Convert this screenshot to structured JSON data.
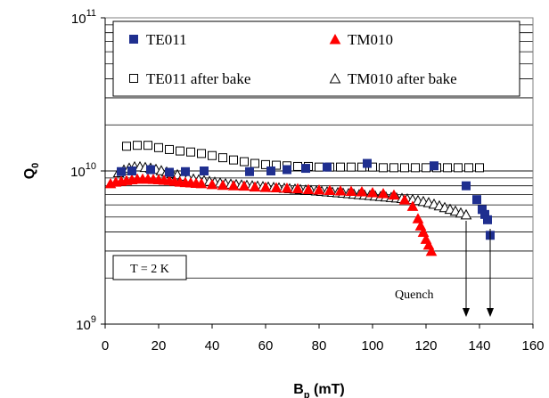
{
  "chart_data": {
    "type": "scatter",
    "title": "",
    "xlabel": "B",
    "xlabel_sub": "p",
    "xlabel_unit": " (mT)",
    "ylabel": "Q",
    "ylabel_sub": "0",
    "xlim": [
      0,
      160
    ],
    "ylim": [
      1000000000.0,
      100000000000.0
    ],
    "yscale": "log",
    "x_ticks": [
      0,
      20,
      40,
      60,
      80,
      100,
      120,
      140,
      160
    ],
    "y_ticks": [
      {
        "value": 1000000000.0,
        "base": "10",
        "exp": "9"
      },
      {
        "value": 10000000000.0,
        "base": "10",
        "exp": "10"
      },
      {
        "value": 100000000000.0,
        "base": "10",
        "exp": "11"
      }
    ],
    "grid": "horizontal",
    "legend_position": "top",
    "series": [
      {
        "name": "TE011",
        "marker": "filled-square",
        "color": "#1f2f8f",
        "points": [
          [
            6,
            9900000000.0
          ],
          [
            10,
            10000000000.0
          ],
          [
            17,
            10200000000.0
          ],
          [
            24,
            9800000000.0
          ],
          [
            30,
            9900000000.0
          ],
          [
            37,
            10000000000.0
          ],
          [
            54,
            9900000000.0
          ],
          [
            62,
            10000000000.0
          ],
          [
            68,
            10200000000.0
          ],
          [
            75,
            10400000000.0
          ],
          [
            83,
            10600000000.0
          ],
          [
            98,
            11200000000.0
          ],
          [
            123,
            10800000000.0
          ],
          [
            135,
            8000000000.0
          ],
          [
            139,
            6500000000.0
          ],
          [
            141,
            5600000000.0
          ],
          [
            142,
            5200000000.0
          ],
          [
            143,
            4800000000.0
          ],
          [
            144,
            3800000000.0
          ]
        ]
      },
      {
        "name": "TM010",
        "marker": "filled-triangle",
        "color": "#ff0000",
        "points": [
          [
            2,
            8300000000.0
          ],
          [
            4,
            8500000000.0
          ],
          [
            6,
            8600000000.0
          ],
          [
            8,
            8700000000.0
          ],
          [
            10,
            8800000000.0
          ],
          [
            12,
            8900000000.0
          ],
          [
            14,
            8900000000.0
          ],
          [
            16,
            8900000000.0
          ],
          [
            18,
            8850000000.0
          ],
          [
            20,
            8800000000.0
          ],
          [
            22,
            8750000000.0
          ],
          [
            24,
            8700000000.0
          ],
          [
            26,
            8600000000.0
          ],
          [
            28,
            8500000000.0
          ],
          [
            30,
            8450000000.0
          ],
          [
            32,
            8400000000.0
          ],
          [
            34,
            8350000000.0
          ],
          [
            36,
            8300000000.0
          ],
          [
            40,
            8200000000.0
          ],
          [
            44,
            8100000000.0
          ],
          [
            48,
            8050000000.0
          ],
          [
            52,
            8000000000.0
          ],
          [
            56,
            7900000000.0
          ],
          [
            60,
            7850000000.0
          ],
          [
            64,
            7800000000.0
          ],
          [
            68,
            7750000000.0
          ],
          [
            72,
            7700000000.0
          ],
          [
            76,
            7600000000.0
          ],
          [
            80,
            7550000000.0
          ],
          [
            84,
            7500000000.0
          ],
          [
            88,
            7450000000.0
          ],
          [
            92,
            7400000000.0
          ],
          [
            96,
            7350000000.0
          ],
          [
            100,
            7250000000.0
          ],
          [
            104,
            7150000000.0
          ],
          [
            108,
            7000000000.0
          ],
          [
            112,
            6500000000.0
          ],
          [
            115,
            5900000000.0
          ],
          [
            117,
            4900000000.0
          ],
          [
            118,
            4400000000.0
          ],
          [
            119,
            4000000000.0
          ],
          [
            120,
            3600000000.0
          ],
          [
            121,
            3300000000.0
          ],
          [
            122,
            3000000000.0
          ]
        ]
      },
      {
        "name": "TE011 after bake",
        "marker": "open-square",
        "color": "#000000",
        "points": [
          [
            8,
            14500000000.0
          ],
          [
            12,
            14700000000.0
          ],
          [
            16,
            14700000000.0
          ],
          [
            20,
            14200000000.0
          ],
          [
            24,
            13800000000.0
          ],
          [
            28,
            13500000000.0
          ],
          [
            32,
            13300000000.0
          ],
          [
            36,
            13000000000.0
          ],
          [
            40,
            12600000000.0
          ],
          [
            44,
            12200000000.0
          ],
          [
            48,
            11800000000.0
          ],
          [
            52,
            11500000000.0
          ],
          [
            56,
            11200000000.0
          ],
          [
            60,
            11000000000.0
          ],
          [
            64,
            10900000000.0
          ],
          [
            68,
            10800000000.0
          ],
          [
            72,
            10700000000.0
          ],
          [
            76,
            10700000000.0
          ],
          [
            80,
            10600000000.0
          ],
          [
            84,
            10600000000.0
          ],
          [
            88,
            10600000000.0
          ],
          [
            92,
            10600000000.0
          ],
          [
            96,
            10600000000.0
          ],
          [
            100,
            10600000000.0
          ],
          [
            104,
            10500000000.0
          ],
          [
            108,
            10500000000.0
          ],
          [
            112,
            10500000000.0
          ],
          [
            116,
            10500000000.0
          ],
          [
            120,
            10500000000.0
          ],
          [
            124,
            10500000000.0
          ],
          [
            128,
            10500000000.0
          ],
          [
            132,
            10500000000.0
          ],
          [
            136,
            10500000000.0
          ],
          [
            140,
            10500000000.0
          ]
        ]
      },
      {
        "name": "TM010 after bake",
        "marker": "open-triangle",
        "color": "#000000",
        "points": [
          [
            5,
            9800000000.0
          ],
          [
            7,
            10200000000.0
          ],
          [
            9,
            10500000000.0
          ],
          [
            11,
            10700000000.0
          ],
          [
            13,
            10700000000.0
          ],
          [
            15,
            10600000000.0
          ],
          [
            17,
            10500000000.0
          ],
          [
            19,
            10300000000.0
          ],
          [
            21,
            10100000000.0
          ],
          [
            23,
            9900000000.0
          ],
          [
            25,
            9700000000.0
          ],
          [
            27,
            9500000000.0
          ],
          [
            29,
            9300000000.0
          ],
          [
            31,
            9100000000.0
          ],
          [
            33,
            8900000000.0
          ],
          [
            35,
            8800000000.0
          ],
          [
            37,
            8700000000.0
          ],
          [
            39,
            8600000000.0
          ],
          [
            41,
            8500000000.0
          ],
          [
            43,
            8400000000.0
          ],
          [
            45,
            8300000000.0
          ],
          [
            47,
            8250000000.0
          ],
          [
            49,
            8200000000.0
          ],
          [
            51,
            8150000000.0
          ],
          [
            53,
            8100000000.0
          ],
          [
            55,
            8050000000.0
          ],
          [
            57,
            8000000000.0
          ],
          [
            59,
            7950000000.0
          ],
          [
            61,
            7900000000.0
          ],
          [
            63,
            7850000000.0
          ],
          [
            65,
            7800000000.0
          ],
          [
            67,
            7750000000.0
          ],
          [
            69,
            7700000000.0
          ],
          [
            71,
            7650000000.0
          ],
          [
            73,
            7600000000.0
          ],
          [
            75,
            7550000000.0
          ],
          [
            77,
            7500000000.0
          ],
          [
            79,
            7450000000.0
          ],
          [
            81,
            7400000000.0
          ],
          [
            83,
            7350000000.0
          ],
          [
            85,
            7300000000.0
          ],
          [
            87,
            7250000000.0
          ],
          [
            89,
            7200000000.0
          ],
          [
            91,
            7150000000.0
          ],
          [
            93,
            7100000000.0
          ],
          [
            95,
            7050000000.0
          ],
          [
            97,
            7000000000.0
          ],
          [
            99,
            6950000000.0
          ],
          [
            101,
            6900000000.0
          ],
          [
            103,
            6850000000.0
          ],
          [
            105,
            6800000000.0
          ],
          [
            107,
            6750000000.0
          ],
          [
            109,
            6700000000.0
          ],
          [
            111,
            6650000000.0
          ],
          [
            113,
            6600000000.0
          ],
          [
            115,
            6550000000.0
          ],
          [
            117,
            6450000000.0
          ],
          [
            119,
            6350000000.0
          ],
          [
            121,
            6250000000.0
          ],
          [
            123,
            6100000000.0
          ],
          [
            125,
            5950000000.0
          ],
          [
            127,
            5800000000.0
          ],
          [
            129,
            5650000000.0
          ],
          [
            131,
            5500000000.0
          ],
          [
            133,
            5350000000.0
          ],
          [
            135,
            5200000000.0
          ]
        ]
      }
    ],
    "annotations": {
      "temperature_label": "T = 2 K",
      "quench_label": "Quench",
      "quench_arrows_x": [
        135,
        144
      ]
    }
  }
}
